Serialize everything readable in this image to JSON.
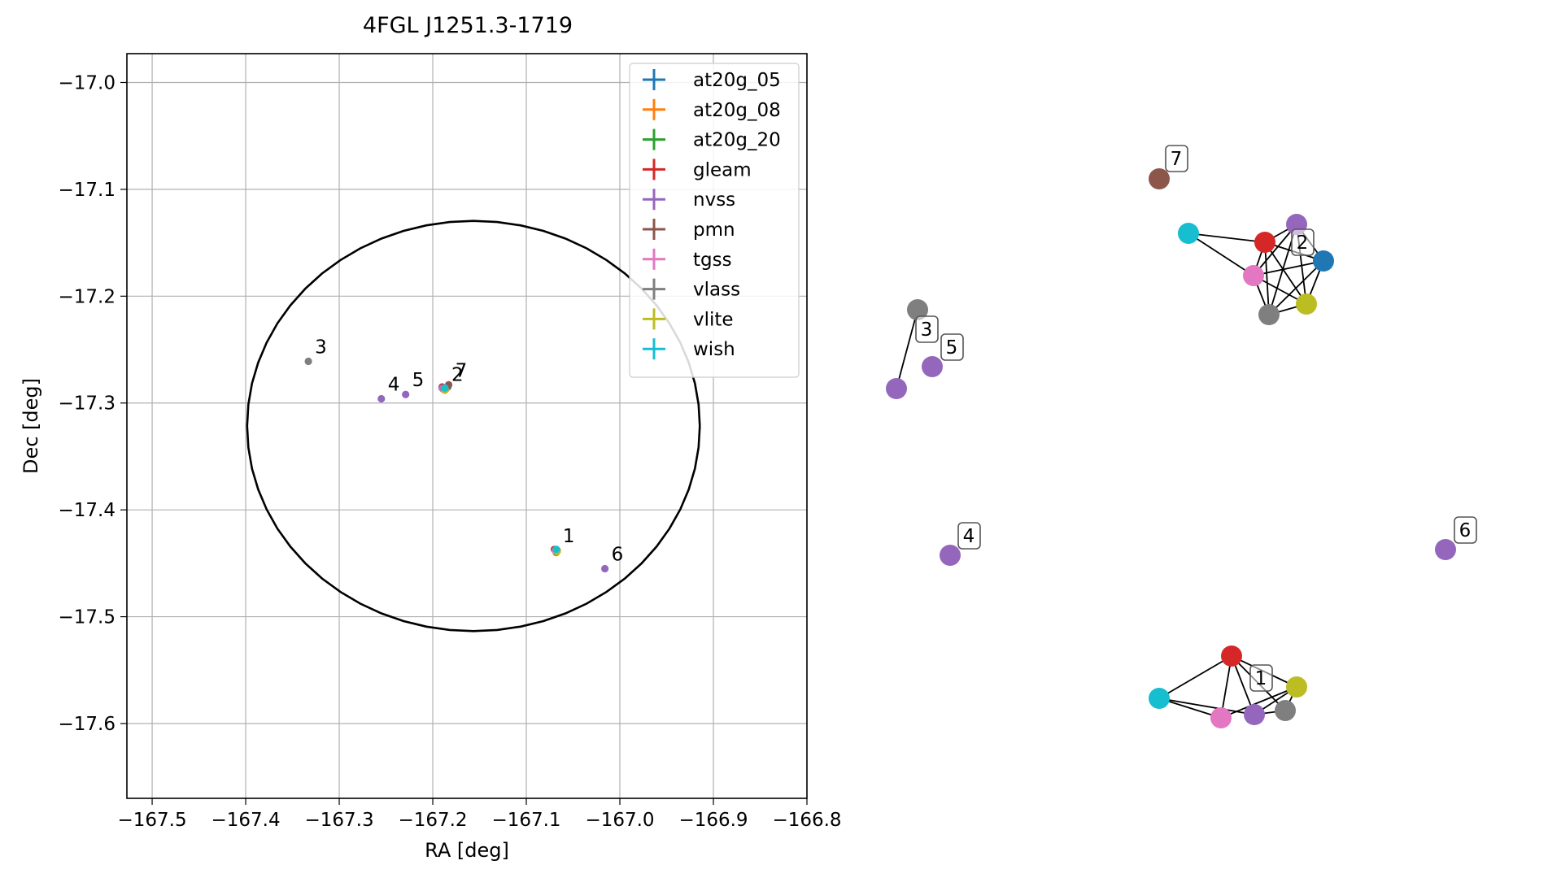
{
  "chart_data": [
    {
      "type": "scatter",
      "title": "4FGL J1251.3-1719",
      "xlabel": "RA [deg]",
      "ylabel": "Dec [deg]",
      "xlim": [
        -167.527,
        -166.8
      ],
      "ylim": [
        -17.67,
        -16.973
      ],
      "x_ticks": [
        -167.5,
        -167.4,
        -167.3,
        -167.2,
        -167.1,
        -167.0,
        -166.9,
        -166.8
      ],
      "x_tick_labels": [
        "−167.5",
        "−167.4",
        "−167.3",
        "−167.2",
        "−167.1",
        "−167.0",
        "−166.9",
        "−166.8"
      ],
      "y_ticks": [
        -17.0,
        -17.1,
        -17.2,
        -17.3,
        -17.4,
        -17.5,
        -17.6
      ],
      "y_tick_labels": [
        "−17.0",
        "−17.1",
        "−17.2",
        "−17.3",
        "−17.4",
        "−17.5",
        "−17.6"
      ],
      "grid": true,
      "legend_position": "top-right",
      "ellipse": {
        "center": [
          -167.1565,
          -17.3215
        ],
        "semi_axis_ra": 0.242,
        "semi_axis_dec": 0.192,
        "color": "#000000"
      },
      "series": [
        {
          "name": "at20g_05",
          "color": "#1f77b4",
          "points": [
            [
              -167.068,
              -17.438
            ],
            [
              -167.184,
              -17.285
            ]
          ]
        },
        {
          "name": "at20g_08",
          "color": "#ff7f0e",
          "points": [
            [
              -167.068,
              -17.44
            ],
            [
              -167.186,
              -17.287
            ]
          ]
        },
        {
          "name": "at20g_20",
          "color": "#2ca02c",
          "points": [
            [
              -167.068,
              -17.439
            ]
          ]
        },
        {
          "name": "gleam",
          "color": "#d62728",
          "points": [
            [
              -167.07,
              -17.437
            ],
            [
              -167.19,
              -17.285
            ]
          ]
        },
        {
          "name": "nvss",
          "color": "#9467bd",
          "points": [
            [
              -167.068,
              -17.437
            ],
            [
              -167.19,
              -17.286
            ],
            [
              -167.255,
              -17.296
            ],
            [
              -167.229,
              -17.292
            ],
            [
              -167.016,
              -17.455
            ]
          ]
        },
        {
          "name": "pmn",
          "color": "#8c564b",
          "points": [
            [
              -167.183,
              -17.283
            ]
          ]
        },
        {
          "name": "tgss",
          "color": "#e377c2",
          "points": [
            [
              -167.069,
              -17.438
            ],
            [
              -167.189,
              -17.287
            ]
          ]
        },
        {
          "name": "vlass",
          "color": "#7f7f7f",
          "points": [
            [
              -167.067,
              -17.438
            ],
            [
              -167.188,
              -17.287
            ],
            [
              -167.333,
              -17.261
            ]
          ]
        },
        {
          "name": "vlite",
          "color": "#bcbd22",
          "points": [
            [
              -167.067,
              -17.439
            ],
            [
              -167.187,
              -17.288
            ]
          ]
        },
        {
          "name": "wish",
          "color": "#17becf",
          "points": [
            [
              -167.068,
              -17.437
            ],
            [
              -167.187,
              -17.286
            ]
          ]
        }
      ],
      "annotations": [
        {
          "text": "1",
          "x": -167.068,
          "y": -17.438
        },
        {
          "text": "2",
          "x": -167.187,
          "y": -17.287
        },
        {
          "text": "3",
          "x": -167.333,
          "y": -17.261
        },
        {
          "text": "4",
          "x": -167.255,
          "y": -17.296
        },
        {
          "text": "5",
          "x": -167.229,
          "y": -17.292
        },
        {
          "text": "6",
          "x": -167.016,
          "y": -17.455
        },
        {
          "text": "7",
          "x": -167.183,
          "y": -17.283
        }
      ]
    },
    {
      "type": "network",
      "axes_visible": false,
      "nodes": [
        {
          "id": "g7-pmn",
          "color": "#8c564b",
          "label": "7"
        },
        {
          "id": "g2-wish",
          "color": "#17becf"
        },
        {
          "id": "g2-gleam",
          "color": "#d62728"
        },
        {
          "id": "g2-nvss",
          "color": "#9467bd"
        },
        {
          "id": "g2-at20g",
          "color": "#1f77b4",
          "label": "2"
        },
        {
          "id": "g2-tgss",
          "color": "#e377c2"
        },
        {
          "id": "g2-vlite",
          "color": "#bcbd22"
        },
        {
          "id": "g2-vlass",
          "color": "#7f7f7f"
        },
        {
          "id": "g3-vlass",
          "color": "#7f7f7f",
          "label": "3"
        },
        {
          "id": "g3-nvss",
          "color": "#9467bd"
        },
        {
          "id": "g5-nvss",
          "color": "#9467bd",
          "label": "5"
        },
        {
          "id": "g4-nvss",
          "color": "#9467bd",
          "label": "4"
        },
        {
          "id": "g6-nvss",
          "color": "#9467bd",
          "label": "6"
        },
        {
          "id": "g1-gleam",
          "color": "#d62728"
        },
        {
          "id": "g1-wish",
          "color": "#17becf"
        },
        {
          "id": "g1-tgss",
          "color": "#e377c2"
        },
        {
          "id": "g1-nvss",
          "color": "#9467bd",
          "label": "1"
        },
        {
          "id": "g1-vlass",
          "color": "#7f7f7f"
        },
        {
          "id": "g1-vlite",
          "color": "#bcbd22"
        }
      ],
      "edges": [
        [
          "g2-wish",
          "g2-gleam"
        ],
        [
          "g2-wish",
          "g2-tgss"
        ],
        [
          "g2-gleam",
          "g2-nvss"
        ],
        [
          "g2-gleam",
          "g2-at20g"
        ],
        [
          "g2-gleam",
          "g2-tgss"
        ],
        [
          "g2-gleam",
          "g2-vlite"
        ],
        [
          "g2-gleam",
          "g2-vlass"
        ],
        [
          "g2-nvss",
          "g2-at20g"
        ],
        [
          "g2-nvss",
          "g2-tgss"
        ],
        [
          "g2-nvss",
          "g2-vlite"
        ],
        [
          "g2-nvss",
          "g2-vlass"
        ],
        [
          "g2-at20g",
          "g2-tgss"
        ],
        [
          "g2-at20g",
          "g2-vlite"
        ],
        [
          "g2-at20g",
          "g2-vlass"
        ],
        [
          "g2-tgss",
          "g2-vlite"
        ],
        [
          "g2-tgss",
          "g2-vlass"
        ],
        [
          "g2-vlite",
          "g2-vlass"
        ],
        [
          "g3-vlass",
          "g3-nvss"
        ],
        [
          "g1-wish",
          "g1-gleam"
        ],
        [
          "g1-wish",
          "g1-tgss"
        ],
        [
          "g1-wish",
          "g1-nvss"
        ],
        [
          "g1-gleam",
          "g1-tgss"
        ],
        [
          "g1-gleam",
          "g1-nvss"
        ],
        [
          "g1-gleam",
          "g1-vlass"
        ],
        [
          "g1-gleam",
          "g1-vlite"
        ],
        [
          "g1-tgss",
          "g1-vlite"
        ],
        [
          "g1-nvss",
          "g1-vlite"
        ],
        [
          "g1-nvss",
          "g1-vlass"
        ],
        [
          "g1-vlass",
          "g1-vlite"
        ]
      ]
    }
  ]
}
